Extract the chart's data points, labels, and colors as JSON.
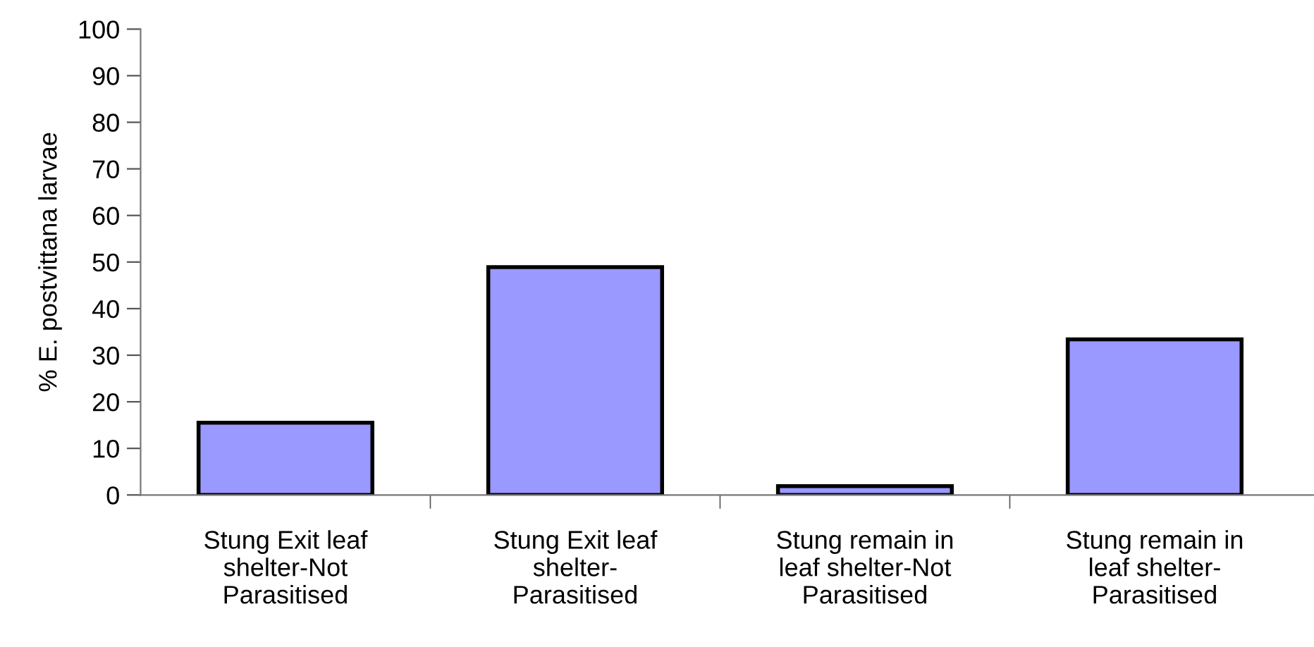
{
  "chart_data": {
    "type": "bar",
    "ylabel": "% E. postvittana larvae",
    "categories": [
      "Stung Exit leaf\nshelter-Not\nParasitised",
      "Stung Exit leaf\nshelter-\nParasitised",
      "Stung remain in\nleaf shelter-Not\nParasitised",
      "Stung remain in\nleaf shelter-\nParasitised"
    ],
    "values": [
      15.5,
      48.9,
      1.9,
      33.4
    ],
    "color": "#9999ff",
    "ylim": [
      0,
      100
    ],
    "yticks": [
      0,
      10,
      20,
      30,
      40,
      50,
      60,
      70,
      80,
      90,
      100
    ],
    "grid": false,
    "legend": false
  }
}
